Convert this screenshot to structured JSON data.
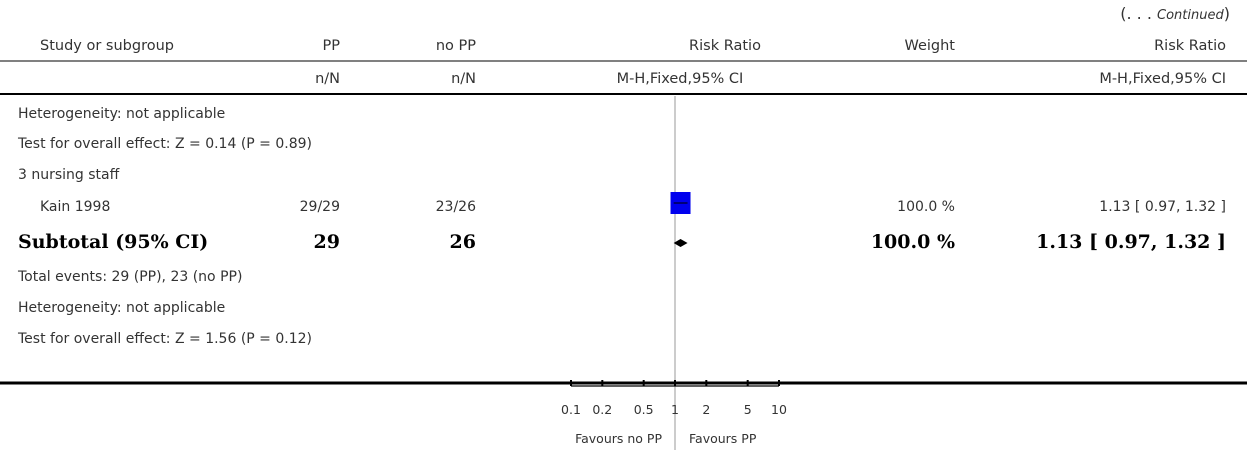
{
  "continued_prefix": "(. . . ",
  "continued_word": "Continued",
  "continued_suffix": ")",
  "columns": {
    "study": "Study or subgroup",
    "pp": "PP",
    "nopp": "no PP",
    "rr": "Risk Ratio",
    "weight": "Weight",
    "rr_ci": "Risk Ratio"
  },
  "subheaders": {
    "pp": "n/N",
    "nopp": "n/N",
    "rr": "M-H,Fixed,95% CI",
    "rr_ci": "M-H,Fixed,95% CI"
  },
  "rows": {
    "het1": "Heterogeneity: not applicable",
    "test1": "Test for overall effect: Z = 0.14 (P = 0.89)",
    "group": "3 nursing staff",
    "study": {
      "name": "Kain 1998",
      "pp": "29/29",
      "nopp": "23/26",
      "weight": "100.0 %",
      "ci": "1.13 [ 0.97, 1.32 ]"
    },
    "subtotal": {
      "label": "Subtotal (95% CI)",
      "pp": "29",
      "nopp": "26",
      "weight": "100.0 %",
      "ci": "1.13 [ 0.97, 1.32 ]"
    },
    "events": "Total events: 29 (PP), 23 (no PP)",
    "het2": "Heterogeneity: not applicable",
    "test2": "Test for overall effect: Z = 1.56 (P = 0.12)"
  },
  "axis": {
    "favours_left": "Favours no PP",
    "favours_right": "Favours PP"
  },
  "chart_data": {
    "type": "forest",
    "scale": "log",
    "xlim": [
      0.1,
      10
    ],
    "ticks": [
      0.1,
      0.2,
      0.5,
      1,
      2,
      5,
      10
    ],
    "tick_labels": [
      "0.1",
      "0.2",
      "0.5",
      "1",
      "2",
      "5",
      "10"
    ],
    "reference_line": 1,
    "studies": [
      {
        "name": "Kain 1998",
        "rr": 1.13,
        "ci": [
          0.97,
          1.32
        ],
        "weight": 100.0
      }
    ],
    "subtotal": {
      "rr": 1.13,
      "ci": [
        0.97,
        1.32
      ]
    },
    "colors": {
      "box": "#0000ee",
      "diamond": "#000000",
      "axis": "#000000",
      "refline": "#999999"
    }
  }
}
